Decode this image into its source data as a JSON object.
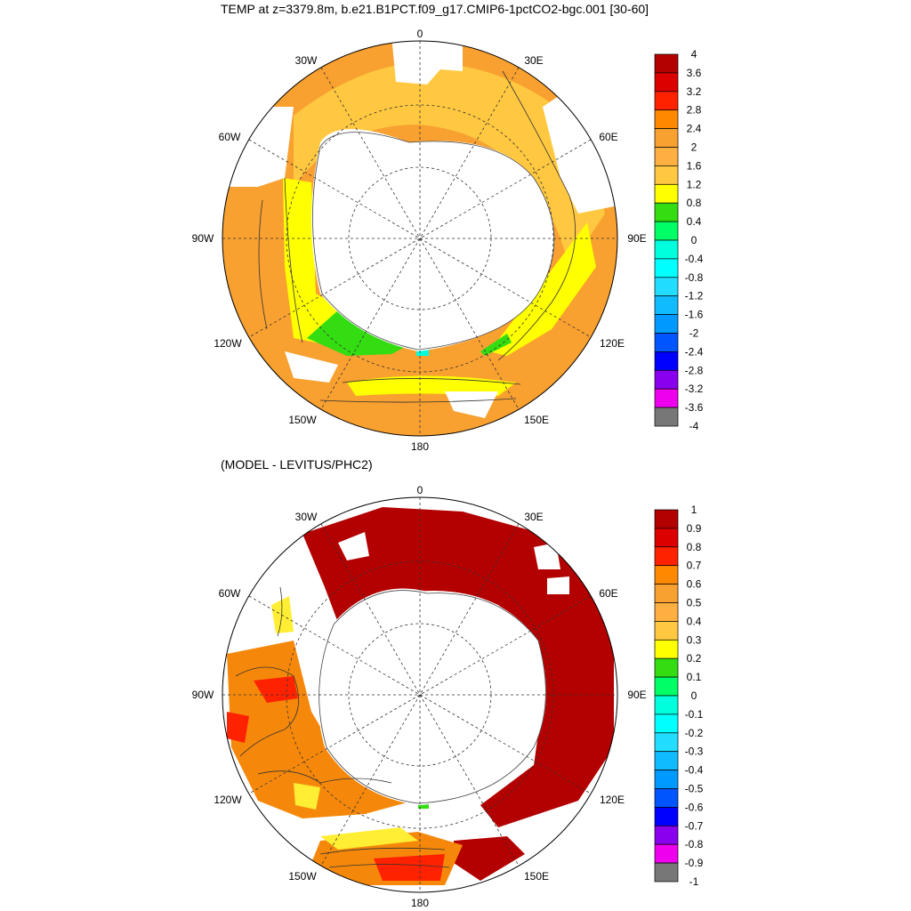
{
  "titles": {
    "top": "TEMP at z=3379.8m, b.e21.B1PCT.f09_g17.CMIP6-1pctCO2-bgc.001 [30-60]",
    "bottom": "(MODEL - LEVITUS/PHC2)"
  },
  "map_labels": {
    "top": [
      "0",
      "30E",
      "60E",
      "90E",
      "120E",
      "150E",
      "180",
      "150W",
      "120W",
      "90W",
      "60W",
      "30W"
    ],
    "bottom": [
      "0",
      "30E",
      "60E",
      "90E",
      "120E",
      "150E",
      "180",
      "150W",
      "120W",
      "90W",
      "60W",
      "30W"
    ]
  },
  "colorbars": {
    "top": {
      "labels": [
        "4",
        "3.6",
        "3.2",
        "2.8",
        "2.4",
        "2",
        "1.6",
        "1.2",
        "0.8",
        "0.4",
        "0",
        "-0.4",
        "-0.8",
        "-1.2",
        "-1.6",
        "-2",
        "-2.4",
        "-2.8",
        "-3.2",
        "-3.6",
        "-4"
      ],
      "colors": [
        "#b30000",
        "#dd0000",
        "#ff2200",
        "#ff8800",
        "#f8a030",
        "#ffb040",
        "#ffc840",
        "#ffff00",
        "#33dd11",
        "#00ff66",
        "#00ffdd",
        "#00ffff",
        "#22ddff",
        "#11bbff",
        "#0099ff",
        "#0055ff",
        "#0000ff",
        "#8800ee",
        "#ee00ee",
        "#cccccc",
        "#777777"
      ]
    },
    "bottom": {
      "labels": [
        "1",
        "0.9",
        "0.8",
        "0.7",
        "0.6",
        "0.5",
        "0.4",
        "0.3",
        "0.2",
        "0.1",
        "0",
        "-0.1",
        "-0.2",
        "-0.3",
        "-0.4",
        "-0.5",
        "-0.6",
        "-0.7",
        "-0.8",
        "-0.9",
        "-1"
      ],
      "colors": [
        "#b30000",
        "#dd0000",
        "#ff2200",
        "#ff8800",
        "#f8a030",
        "#ffb040",
        "#ffc840",
        "#ffff00",
        "#33dd11",
        "#00ff66",
        "#00ffdd",
        "#00ffff",
        "#22ddff",
        "#11bbff",
        "#0099ff",
        "#0055ff",
        "#0000ff",
        "#8800ee",
        "#ee00ee",
        "#cccccc",
        "#777777"
      ]
    }
  },
  "colors": {
    "land": "#ffffff",
    "top_ocean_base": "#f8a030",
    "top_ring": "#ffc840",
    "top_yellow": "#ffff00",
    "top_green": "#33dd11",
    "bottom_dark_red": "#b30000",
    "bottom_orange": "#f5880a",
    "bottom_red": "#ff2200",
    "bottom_yellow": "#ffee33"
  }
}
